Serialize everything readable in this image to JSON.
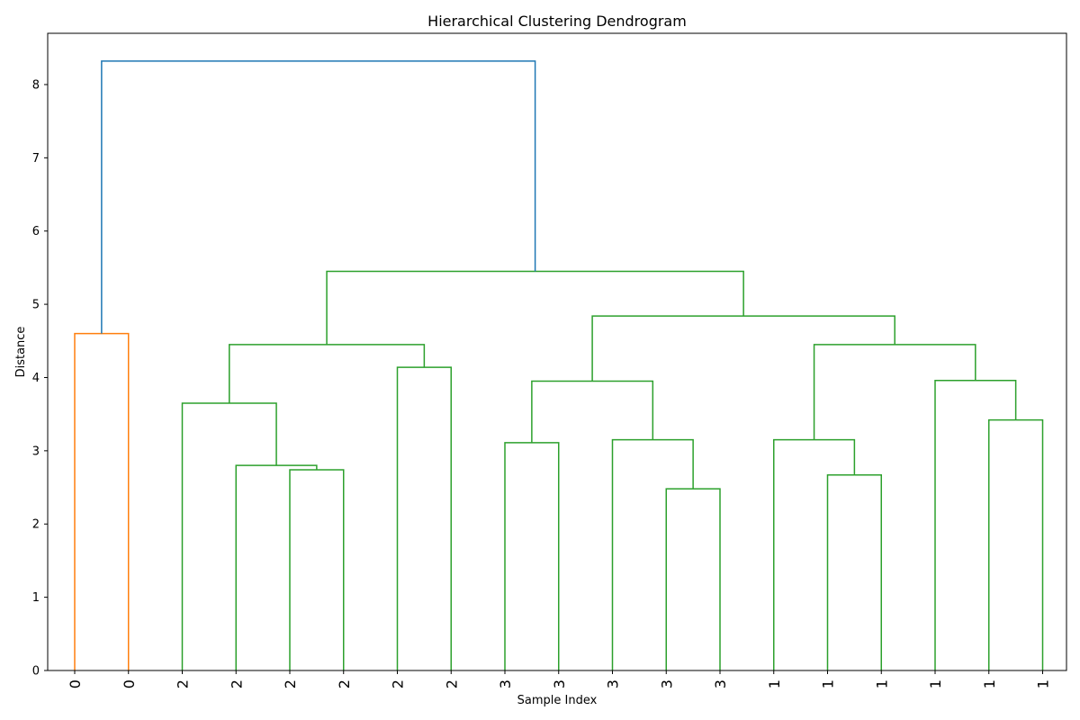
{
  "chart_data": {
    "type": "dendrogram",
    "title": "Hierarchical Clustering Dendrogram",
    "xlabel": "Sample Index",
    "ylabel": "Distance",
    "ylim": [
      0,
      8.7
    ],
    "yticks": [
      0,
      1,
      2,
      3,
      4,
      5,
      6,
      7,
      8
    ],
    "grid": false,
    "leaf_labels": [
      "0",
      "0",
      "2",
      "2",
      "2",
      "2",
      "2",
      "2",
      "3",
      "3",
      "3",
      "3",
      "3",
      "1",
      "1",
      "1",
      "1",
      "1",
      "1"
    ],
    "link_colors": {
      "above_threshold": "#1f77b4",
      "cluster_a": "#ff7f0e",
      "cluster_b": "#2ca02c"
    },
    "merges": [
      {
        "id": "m1",
        "left": "leaf:0",
        "right": "leaf:1",
        "height": 4.6,
        "color": "cluster_a"
      },
      {
        "id": "m2",
        "left": "leaf:4",
        "right": "leaf:5",
        "height": 2.74,
        "color": "cluster_b"
      },
      {
        "id": "m3",
        "left": "leaf:3",
        "right": "m2",
        "height": 2.8,
        "color": "cluster_b"
      },
      {
        "id": "m4",
        "left": "leaf:2",
        "right": "m3",
        "height": 3.65,
        "color": "cluster_b"
      },
      {
        "id": "m5",
        "left": "leaf:6",
        "right": "leaf:7",
        "height": 4.14,
        "color": "cluster_b"
      },
      {
        "id": "m6",
        "left": "m4",
        "right": "m5",
        "height": 4.45,
        "color": "cluster_b"
      },
      {
        "id": "m7",
        "left": "leaf:8",
        "right": "leaf:9",
        "height": 3.11,
        "color": "cluster_b"
      },
      {
        "id": "m8",
        "left": "leaf:11",
        "right": "leaf:12",
        "height": 2.48,
        "color": "cluster_b"
      },
      {
        "id": "m9",
        "left": "leaf:10",
        "right": "m8",
        "height": 3.15,
        "color": "cluster_b"
      },
      {
        "id": "m10",
        "left": "m7",
        "right": "m9",
        "height": 3.95,
        "color": "cluster_b"
      },
      {
        "id": "m11",
        "left": "leaf:14",
        "right": "leaf:15",
        "height": 2.67,
        "color": "cluster_b"
      },
      {
        "id": "m12",
        "left": "leaf:13",
        "right": "m11",
        "height": 3.15,
        "color": "cluster_b"
      },
      {
        "id": "m13",
        "left": "leaf:17",
        "right": "leaf:18",
        "height": 3.42,
        "color": "cluster_b"
      },
      {
        "id": "m14",
        "left": "leaf:16",
        "right": "m13",
        "height": 3.96,
        "color": "cluster_b"
      },
      {
        "id": "m15",
        "left": "m12",
        "right": "m14",
        "height": 4.45,
        "color": "cluster_b"
      },
      {
        "id": "m16",
        "left": "m10",
        "right": "m15",
        "height": 4.84,
        "color": "cluster_b"
      },
      {
        "id": "m17",
        "left": "m6",
        "right": "m16",
        "height": 5.45,
        "color": "cluster_b"
      },
      {
        "id": "m18",
        "left": "m1",
        "right": "m17",
        "height": 8.32,
        "color": "above_threshold"
      }
    ]
  }
}
